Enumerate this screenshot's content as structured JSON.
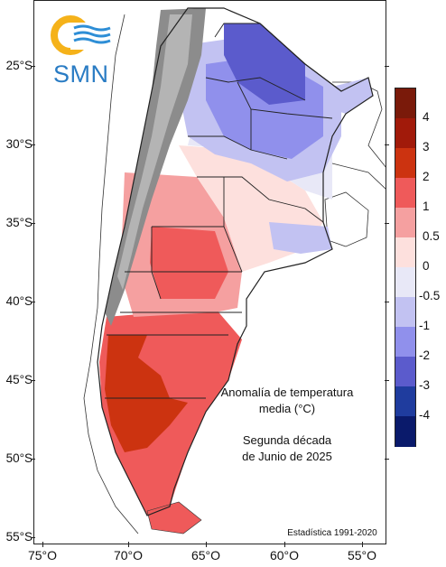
{
  "logo": {
    "name": "SMN",
    "colors": {
      "ring": "#f5b21a",
      "waves": "#2e8ed6"
    }
  },
  "annotation": {
    "title_line1": "Anomalía de temperatura",
    "title_line2": "media (°C)",
    "period_line1": "Segunda década",
    "period_line2": "de Junio de 2025",
    "baseline": "Estadística 1991-2020"
  },
  "axes": {
    "lat_ticks": [
      "25°S",
      "30°S",
      "35°S",
      "40°S",
      "45°S",
      "50°S",
      "55°S"
    ],
    "lon_ticks": [
      "75°O",
      "70°O",
      "65°O",
      "60°O",
      "55°O"
    ]
  },
  "legend": {
    "labels": [
      "4",
      "3",
      "2",
      "1",
      "0.5",
      "0",
      "-0.5",
      "-1",
      "-2",
      "-3",
      "-4"
    ],
    "colors": [
      "#7a1a0a",
      "#a11a0a",
      "#cc3310",
      "#ef5a5a",
      "#f5a0a0",
      "#fde0dd",
      "#e8e8f7",
      "#c2c2f2",
      "#9090ec",
      "#5b5bcc",
      "#1f3c9e",
      "#0a1a6b"
    ]
  },
  "map_regions": {
    "palette": {
      "far_west_cold": "#ffffff",
      "andes_relief": "#8c8c8c",
      "strong_warm": "#cc3310",
      "warm": "#ef5a5a",
      "mild_warm": "#f5a0a0",
      "near_zero": "#fde0dd",
      "slight_cool": "#e8e8f7",
      "cool": "#c2c2f2",
      "cooler": "#9090ec",
      "cold": "#5b5bcc"
    }
  }
}
